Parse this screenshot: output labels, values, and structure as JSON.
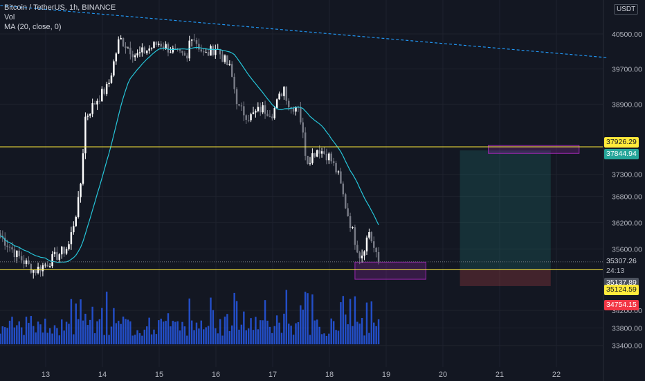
{
  "legend": {
    "symbol": "Bitcoin / TetherUS, 1h, BINANCE",
    "vol": "Vol",
    "ma": "MA (20, close, 0)"
  },
  "currency": "USDT",
  "colors": {
    "background": "#131722",
    "grid": "#1e222d",
    "up": "#ffffff",
    "down": "#787b86",
    "ma": "#26c6da",
    "volume": "#2962ff",
    "trend": "#2196f3",
    "hline": "#ffeb3b",
    "box": "#9c27b0",
    "profit": "#26a69a",
    "loss": "#ef5350"
  },
  "price_tags": {
    "tag_37926": {
      "text": "37926.29",
      "bg": "#ffeb3b",
      "fg": "#131722"
    },
    "tag_37844": {
      "text": "37844.94",
      "bg": "#26a69a",
      "fg": "#ffffff"
    },
    "tag_35307": {
      "text": "35307.26",
      "bg": "#131722",
      "fg": "#d1d4dc"
    },
    "tag_countdown": {
      "text": "24:13",
      "bg": "#131722",
      "fg": "#b2b5be"
    },
    "tag_35137": {
      "text": "35137.89",
      "bg": "#4c525e",
      "fg": "#ffffff"
    },
    "tag_35124": {
      "text": "35124.59",
      "bg": "#ffeb3b",
      "fg": "#131722"
    },
    "tag_34754": {
      "text": "34754.15",
      "bg": "#f23645",
      "fg": "#ffffff"
    }
  },
  "chart_data": {
    "type": "candlestick",
    "title": "Bitcoin / TetherUS, 1h, BINANCE",
    "interval": "1h",
    "y_ticks": [
      "40500.00",
      "39700.00",
      "38900.00",
      "37300.00",
      "36800.00",
      "36200.00",
      "35600.00",
      "34200.00",
      "33800.00",
      "33400.00"
    ],
    "y_range": [
      33250,
      40950
    ],
    "x_ticks": [
      "13",
      "14",
      "15",
      "16",
      "17",
      "18",
      "19",
      "20",
      "21",
      "22"
    ],
    "x_range_days": [
      12.2,
      23.0
    ],
    "key_points": [
      {
        "day": 12.2,
        "close": 35900
      },
      {
        "day": 12.5,
        "close": 35450
      },
      {
        "day": 12.8,
        "close": 35100
      },
      {
        "day": 13.0,
        "close": 35250
      },
      {
        "day": 13.4,
        "close": 35650
      },
      {
        "day": 13.6,
        "close": 36800
      },
      {
        "day": 13.7,
        "close": 38600
      },
      {
        "day": 13.9,
        "close": 39000
      },
      {
        "day": 14.1,
        "close": 39300
      },
      {
        "day": 14.3,
        "close": 40400
      },
      {
        "day": 14.6,
        "close": 40000
      },
      {
        "day": 15.0,
        "close": 40300
      },
      {
        "day": 15.5,
        "close": 39900
      },
      {
        "day": 15.55,
        "close": 40550
      },
      {
        "day": 15.8,
        "close": 40000
      },
      {
        "day": 16.0,
        "close": 40200
      },
      {
        "day": 16.25,
        "close": 39700
      },
      {
        "day": 16.4,
        "close": 38800
      },
      {
        "day": 16.6,
        "close": 38600
      },
      {
        "day": 16.8,
        "close": 38800
      },
      {
        "day": 17.0,
        "close": 38700
      },
      {
        "day": 17.2,
        "close": 39300
      },
      {
        "day": 17.3,
        "close": 38800
      },
      {
        "day": 17.45,
        "close": 38900
      },
      {
        "day": 17.6,
        "close": 37600
      },
      {
        "day": 17.8,
        "close": 37900
      },
      {
        "day": 18.0,
        "close": 37700
      },
      {
        "day": 18.15,
        "close": 37300
      },
      {
        "day": 18.3,
        "close": 36500
      },
      {
        "day": 18.45,
        "close": 35800
      },
      {
        "day": 18.55,
        "close": 35400
      },
      {
        "day": 18.7,
        "close": 36000
      },
      {
        "day": 18.85,
        "close": 35307
      }
    ],
    "ma_period": 20,
    "volume_panel": true,
    "trendline": [
      {
        "day": 12.2,
        "price": 41150
      },
      {
        "day": 22.9,
        "price": 39960
      }
    ],
    "horizontal_lines": [
      37926.29,
      35124.59
    ],
    "boxes": [
      {
        "day_start": 20.8,
        "day_end": 22.4,
        "top": 37960,
        "bottom": 37780
      },
      {
        "day_start": 18.45,
        "day_end": 19.7,
        "top": 35300,
        "bottom": 34910
      }
    ],
    "position": {
      "day_start": 20.3,
      "day_end": 21.9,
      "target": 37844.94,
      "entry": 35137.89,
      "stop": 34754.15
    },
    "last_price": 35307.26,
    "countdown": "24:13"
  }
}
